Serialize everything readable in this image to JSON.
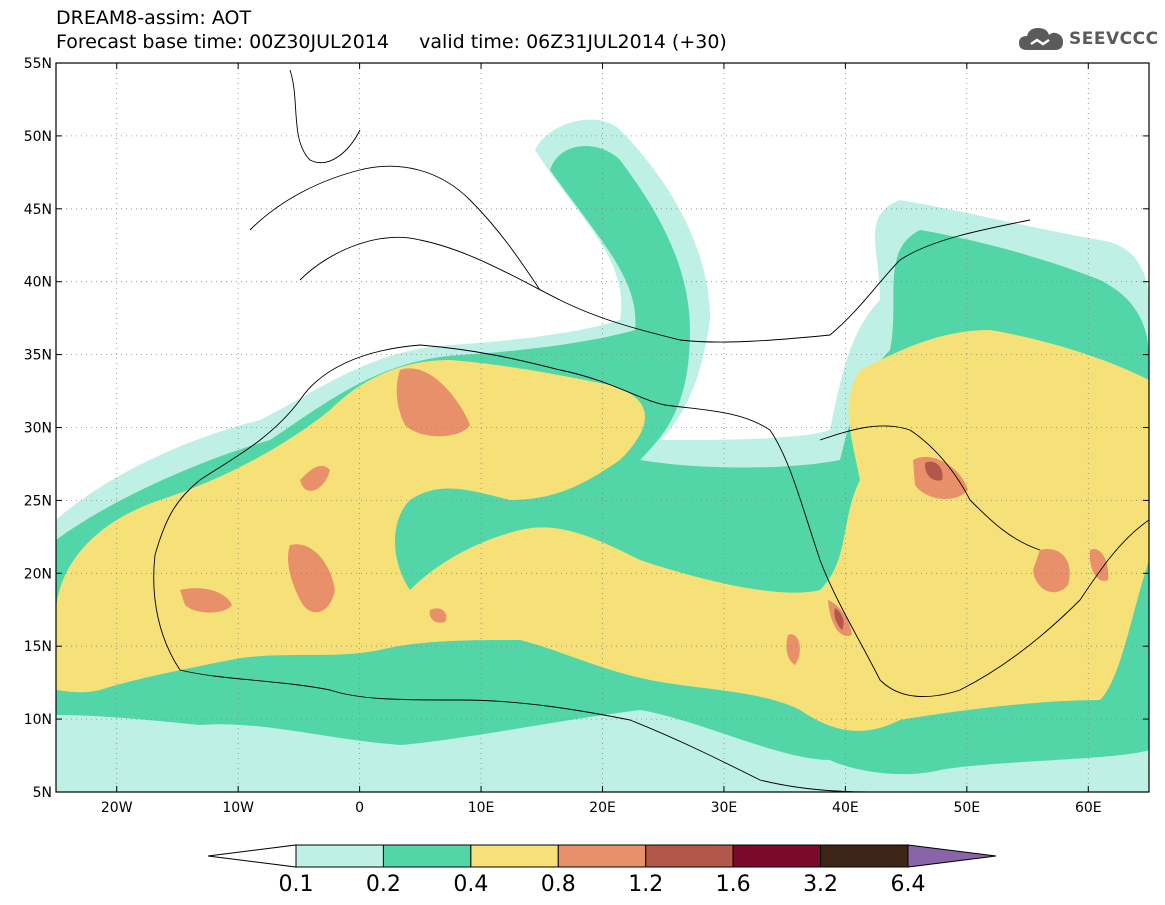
{
  "header": {
    "line1": "DREAM8-assim: AOT",
    "line2": "Forecast base time: 00Z30JUL2014     valid time: 06Z31JUL2014 (+30)"
  },
  "logo": {
    "text": "SEEVCCC",
    "icon": "cloud-icon"
  },
  "map": {
    "lon_range": [
      -25,
      65
    ],
    "lat_range": [
      5,
      55
    ],
    "lat_ticks": [
      {
        "value": 55,
        "label": "55N"
      },
      {
        "value": 50,
        "label": "50N"
      },
      {
        "value": 45,
        "label": "45N"
      },
      {
        "value": 40,
        "label": "40N"
      },
      {
        "value": 35,
        "label": "35N"
      },
      {
        "value": 30,
        "label": "30N"
      },
      {
        "value": 25,
        "label": "25N"
      },
      {
        "value": 20,
        "label": "20N"
      },
      {
        "value": 15,
        "label": "15N"
      },
      {
        "value": 10,
        "label": "10N"
      },
      {
        "value": 5,
        "label": "5N"
      }
    ],
    "lon_ticks": [
      {
        "value": -20,
        "label": "20W"
      },
      {
        "value": -10,
        "label": "10W"
      },
      {
        "value": 0,
        "label": "0"
      },
      {
        "value": 10,
        "label": "10E"
      },
      {
        "value": 20,
        "label": "20E"
      },
      {
        "value": 30,
        "label": "30E"
      },
      {
        "value": 40,
        "label": "40E"
      },
      {
        "value": 50,
        "label": "50E"
      },
      {
        "value": 60,
        "label": "60E"
      }
    ],
    "grid": true
  },
  "colorbar": {
    "levels": [
      "0.1",
      "0.2",
      "0.4",
      "0.8",
      "1.2",
      "1.6",
      "3.2",
      "6.4"
    ],
    "colors": [
      "#ffffff",
      "#bff0e6",
      "#52d6a8",
      "#f5e177",
      "#e8906a",
      "#b3574a",
      "#7a0a2a",
      "#3d2616",
      "#8a64a8"
    ]
  }
}
